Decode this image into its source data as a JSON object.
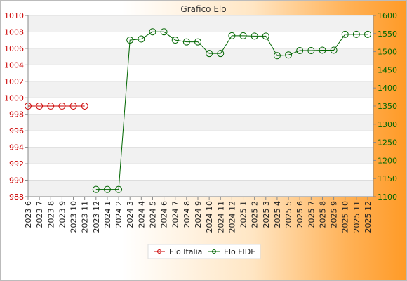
{
  "chart_data": {
    "type": "line",
    "title": "Grafico Elo",
    "categories": [
      "2023 6",
      "2023 7",
      "2023 8",
      "2023 9",
      "2023 10",
      "2023 11",
      "2023 12",
      "2024 1",
      "2024 2",
      "2024 3",
      "2024 4",
      "2024 5",
      "2024 6",
      "2024 7",
      "2024 8",
      "2024 9",
      "2024 10",
      "2024 11",
      "2024 12",
      "2025 1",
      "2025 2",
      "2025 3",
      "2025 4",
      "2025 5",
      "2025 6",
      "2025 7",
      "2025 8",
      "2025 9",
      "2025 10",
      "2025 11",
      "2025 12"
    ],
    "y_left": {
      "ticks": [
        "988",
        "990",
        "992",
        "994",
        "996",
        "998",
        "1000",
        "1002",
        "1004",
        "1006",
        "1008",
        "1010"
      ],
      "ylim": [
        988,
        1010
      ]
    },
    "y_right": {
      "ticks": [
        "1100",
        "1150",
        "1200",
        "1250",
        "1300",
        "1350",
        "1400",
        "1450",
        "1500",
        "1550",
        "1600"
      ],
      "ylim": [
        1100,
        1600
      ]
    },
    "grid": "horizontal bands",
    "legend_position": "bottom",
    "series": [
      {
        "name": "Elo Italia",
        "axis": "left",
        "color": "#cc0000",
        "values": [
          999,
          999,
          999,
          999,
          999,
          999,
          null,
          null,
          null,
          null,
          null,
          null,
          null,
          null,
          null,
          null,
          null,
          null,
          null,
          null,
          null,
          null,
          null,
          null,
          null,
          null,
          null,
          null,
          null,
          null,
          null
        ]
      },
      {
        "name": "Elo FIDE",
        "axis": "right",
        "color": "#006600",
        "values": [
          null,
          null,
          null,
          null,
          null,
          null,
          1120,
          1120,
          1120,
          1532,
          1535,
          1555,
          1555,
          1532,
          1527,
          1527,
          1495,
          1495,
          1544,
          1544,
          1543,
          1543,
          1489,
          1491,
          1503,
          1503,
          1504,
          1504,
          1548,
          1548,
          1548
        ]
      }
    ]
  }
}
